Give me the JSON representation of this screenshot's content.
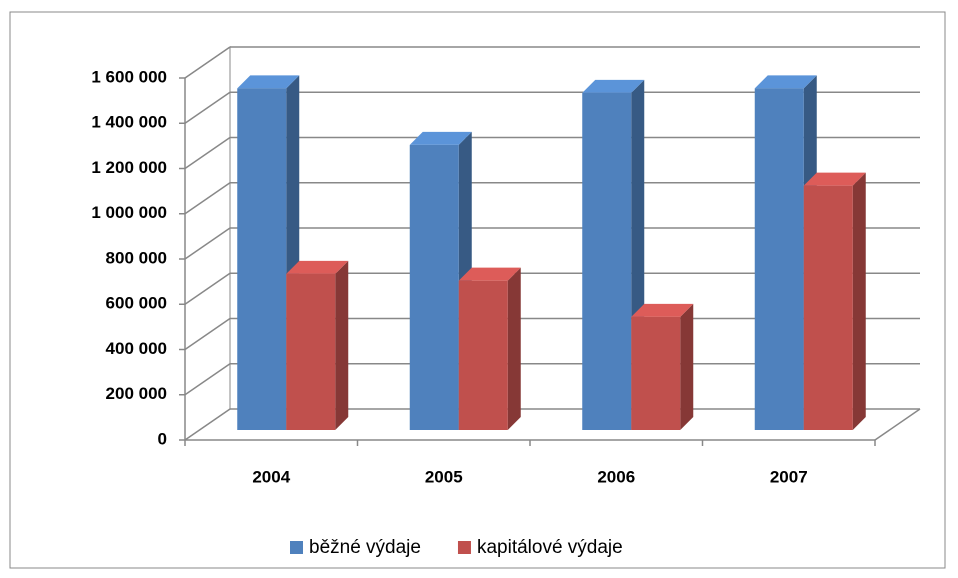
{
  "chart_data": {
    "type": "bar3d",
    "categories": [
      "2004",
      "2005",
      "2006",
      "2007"
    ],
    "series": [
      {
        "name": "běžné výdaje",
        "color": "#4f81bd",
        "values": [
          1510000,
          1260000,
          1490000,
          1510000
        ]
      },
      {
        "name": "kapitálové výdaje",
        "color": "#c0504d",
        "values": [
          690000,
          660000,
          500000,
          1080000
        ]
      }
    ],
    "ylim": [
      0,
      1600000
    ],
    "yticks": [
      0,
      {
        "value": 200000,
        "label": "200 000"
      },
      {
        "value": 400000,
        "label": "400 000"
      },
      {
        "value": 600000,
        "label": "600 000"
      },
      {
        "value": 800000,
        "label": "800 000"
      },
      {
        "value": 1000000,
        "label": "1 000 000"
      },
      {
        "value": 1200000,
        "label": "1 200 000"
      },
      {
        "value": 1400000,
        "label": "1 400 000"
      },
      {
        "value": 1600000,
        "label": "1 600 000"
      }
    ],
    "grid": true,
    "legend": "bottom"
  }
}
